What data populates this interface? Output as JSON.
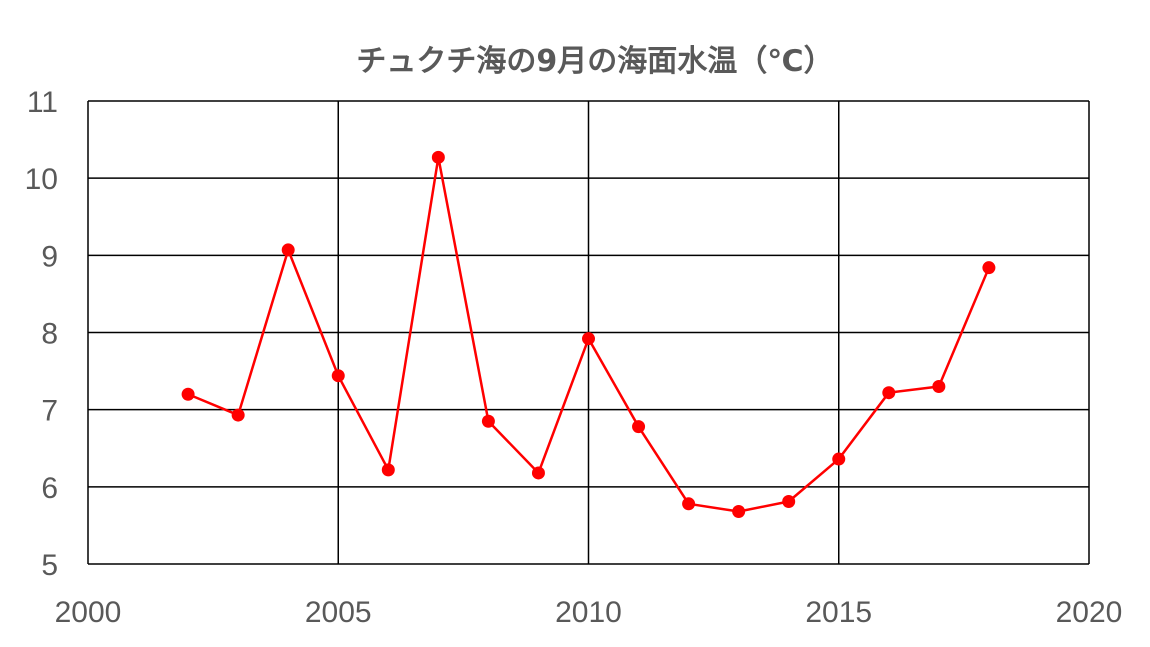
{
  "chart_data": {
    "type": "line",
    "title": "チュクチ海の9月の海面水温（℃）",
    "xlabel": "",
    "ylabel": "",
    "xlim": [
      2000,
      2020
    ],
    "ylim": [
      5,
      11
    ],
    "x_ticks": [
      2000,
      2005,
      2010,
      2015,
      2020
    ],
    "y_ticks": [
      5,
      6,
      7,
      8,
      9,
      10,
      11
    ],
    "grid": true,
    "legend": "none",
    "series": [
      {
        "color": "#ff0000",
        "x": [
          2002,
          2003,
          2004,
          2005,
          2006,
          2007,
          2008,
          2009,
          2010,
          2011,
          2012,
          2013,
          2014,
          2015,
          2016,
          2017,
          2018
        ],
        "y": [
          7.2,
          6.93,
          9.07,
          7.44,
          6.22,
          10.27,
          6.85,
          6.18,
          7.92,
          6.78,
          5.78,
          5.68,
          5.81,
          6.36,
          7.22,
          7.3,
          8.84
        ]
      }
    ]
  }
}
